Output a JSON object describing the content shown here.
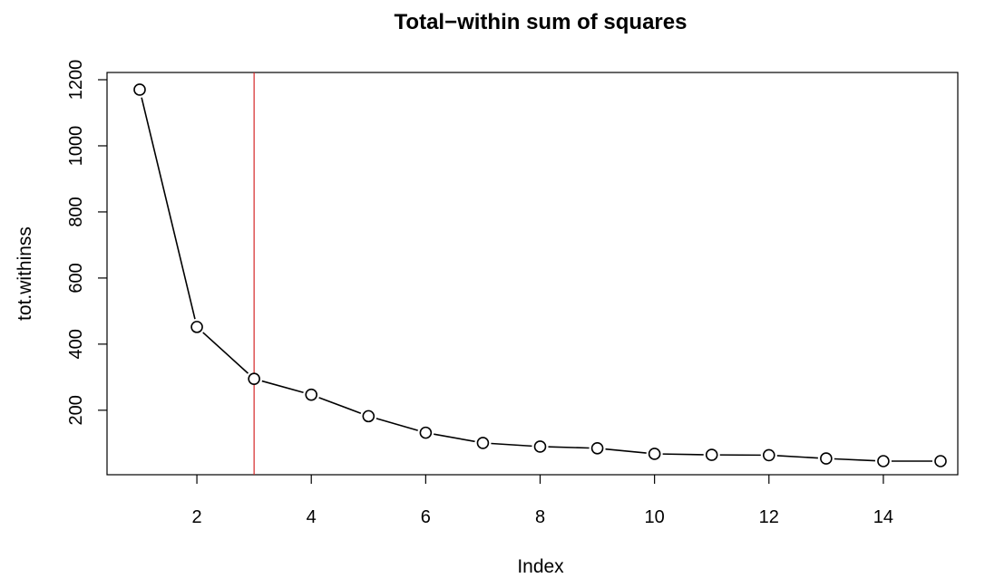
{
  "chart_data": {
    "type": "line",
    "title": "Total−within sum of squares",
    "xlabel": "Index",
    "ylabel": "tot.withinss",
    "x": [
      1,
      2,
      3,
      4,
      5,
      6,
      7,
      8,
      9,
      10,
      11,
      12,
      13,
      14,
      15
    ],
    "series": [
      {
        "values": [
          1170,
          452,
          295,
          247,
          182,
          132,
          101,
          90,
          85,
          68,
          65,
          64,
          54,
          46,
          46
        ]
      }
    ],
    "xlim": [
      1,
      15
    ],
    "ylim": [
      46,
      1200
    ],
    "xticks": [
      2,
      4,
      6,
      8,
      10,
      12,
      14
    ],
    "yticks": [
      200,
      400,
      600,
      800,
      1000,
      1200
    ],
    "vline": {
      "x": 3,
      "color": "#d62728"
    },
    "line_color": "#000000",
    "marker": "open-circle",
    "grid": false,
    "legend": "none"
  }
}
